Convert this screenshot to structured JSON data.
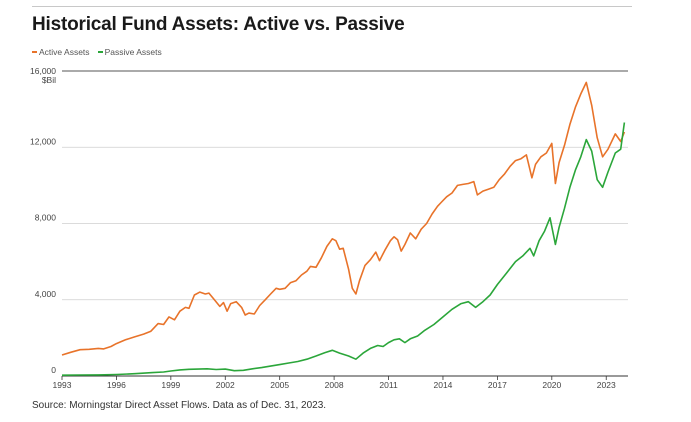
{
  "title": "Historical Fund Assets: Active vs. Passive",
  "source": "Morningstar Direct Asset Flows. Data as of Dec. 31, 2023.",
  "source_label": "Source:",
  "colors": {
    "active": "#e8732a",
    "passive": "#2ba63a",
    "grid": "#cfcfcf",
    "axis": "#333333"
  },
  "chart_data": {
    "type": "line",
    "y_unit": "$Bil",
    "ylim": [
      0,
      16000
    ],
    "y_ticks": [
      0,
      4000,
      8000,
      12000,
      16000
    ],
    "y_tick_labels": [
      "0",
      "4,000",
      "8,000",
      "12,000",
      "16,000"
    ],
    "xlim": [
      1993,
      2024.2
    ],
    "x_ticks": [
      1993,
      1996,
      1999,
      2002,
      2005,
      2008,
      2011,
      2014,
      2017,
      2020,
      2023
    ],
    "x_tick_labels": [
      "1993",
      "1996",
      "1999",
      "2002",
      "2005",
      "2008",
      "2011",
      "2014",
      "2017",
      "2020",
      "2023"
    ],
    "legend_position": "top-left",
    "grid": "horizontal",
    "series": [
      {
        "name": "Active Assets",
        "color": "#e8732a",
        "points": [
          [
            1993.0,
            1100
          ],
          [
            1993.5,
            1250
          ],
          [
            1994.0,
            1380
          ],
          [
            1994.5,
            1400
          ],
          [
            1995.0,
            1450
          ],
          [
            1995.3,
            1420
          ],
          [
            1995.7,
            1550
          ],
          [
            1996.0,
            1700
          ],
          [
            1996.5,
            1900
          ],
          [
            1997.0,
            2050
          ],
          [
            1997.5,
            2200
          ],
          [
            1997.9,
            2350
          ],
          [
            1998.3,
            2750
          ],
          [
            1998.6,
            2700
          ],
          [
            1998.9,
            3100
          ],
          [
            1999.2,
            2950
          ],
          [
            1999.5,
            3400
          ],
          [
            1999.8,
            3600
          ],
          [
            2000.0,
            3550
          ],
          [
            2000.3,
            4250
          ],
          [
            2000.6,
            4400
          ],
          [
            2000.9,
            4300
          ],
          [
            2001.1,
            4350
          ],
          [
            2001.4,
            4000
          ],
          [
            2001.7,
            3650
          ],
          [
            2001.9,
            3850
          ],
          [
            2002.1,
            3400
          ],
          [
            2002.3,
            3800
          ],
          [
            2002.6,
            3900
          ],
          [
            2002.9,
            3600
          ],
          [
            2003.1,
            3200
          ],
          [
            2003.3,
            3300
          ],
          [
            2003.6,
            3250
          ],
          [
            2003.9,
            3700
          ],
          [
            2004.2,
            4000
          ],
          [
            2004.5,
            4300
          ],
          [
            2004.8,
            4600
          ],
          [
            2005.0,
            4550
          ],
          [
            2005.3,
            4600
          ],
          [
            2005.6,
            4900
          ],
          [
            2005.9,
            5000
          ],
          [
            2006.2,
            5300
          ],
          [
            2006.5,
            5500
          ],
          [
            2006.7,
            5750
          ],
          [
            2007.0,
            5700
          ],
          [
            2007.3,
            6200
          ],
          [
            2007.6,
            6800
          ],
          [
            2007.9,
            7200
          ],
          [
            2008.1,
            7100
          ],
          [
            2008.3,
            6650
          ],
          [
            2008.5,
            6700
          ],
          [
            2008.8,
            5600
          ],
          [
            2009.0,
            4600
          ],
          [
            2009.2,
            4300
          ],
          [
            2009.4,
            5000
          ],
          [
            2009.7,
            5800
          ],
          [
            2010.0,
            6100
          ],
          [
            2010.3,
            6500
          ],
          [
            2010.5,
            6050
          ],
          [
            2010.8,
            6600
          ],
          [
            2011.1,
            7100
          ],
          [
            2011.3,
            7300
          ],
          [
            2011.5,
            7150
          ],
          [
            2011.7,
            6550
          ],
          [
            2011.9,
            6900
          ],
          [
            2012.2,
            7500
          ],
          [
            2012.5,
            7200
          ],
          [
            2012.8,
            7700
          ],
          [
            2013.1,
            8000
          ],
          [
            2013.4,
            8500
          ],
          [
            2013.7,
            8900
          ],
          [
            2013.9,
            9100
          ],
          [
            2014.2,
            9400
          ],
          [
            2014.5,
            9600
          ],
          [
            2014.8,
            10000
          ],
          [
            2015.1,
            10050
          ],
          [
            2015.4,
            10100
          ],
          [
            2015.7,
            10200
          ],
          [
            2015.9,
            9500
          ],
          [
            2016.2,
            9700
          ],
          [
            2016.5,
            9800
          ],
          [
            2016.8,
            9900
          ],
          [
            2017.1,
            10300
          ],
          [
            2017.4,
            10600
          ],
          [
            2017.7,
            11000
          ],
          [
            2018.0,
            11300
          ],
          [
            2018.3,
            11400
          ],
          [
            2018.6,
            11600
          ],
          [
            2018.9,
            10400
          ],
          [
            2019.1,
            11100
          ],
          [
            2019.4,
            11500
          ],
          [
            2019.7,
            11700
          ],
          [
            2020.0,
            12200
          ],
          [
            2020.2,
            10100
          ],
          [
            2020.4,
            11200
          ],
          [
            2020.7,
            12100
          ],
          [
            2021.0,
            13200
          ],
          [
            2021.3,
            14100
          ],
          [
            2021.6,
            14800
          ],
          [
            2021.9,
            15400
          ],
          [
            2022.2,
            14200
          ],
          [
            2022.5,
            12500
          ],
          [
            2022.8,
            11500
          ],
          [
            2023.1,
            11900
          ],
          [
            2023.5,
            12700
          ],
          [
            2023.8,
            12300
          ],
          [
            2024.0,
            12800
          ]
        ]
      },
      {
        "name": "Passive Assets",
        "color": "#2ba63a",
        "points": [
          [
            1993.0,
            40
          ],
          [
            1994.0,
            50
          ],
          [
            1995.0,
            60
          ],
          [
            1996.0,
            80
          ],
          [
            1997.0,
            120
          ],
          [
            1998.0,
            180
          ],
          [
            1998.6,
            210
          ],
          [
            1999.0,
            260
          ],
          [
            1999.5,
            320
          ],
          [
            2000.0,
            350
          ],
          [
            2000.5,
            360
          ],
          [
            2001.0,
            380
          ],
          [
            2001.5,
            340
          ],
          [
            2002.0,
            360
          ],
          [
            2002.5,
            280
          ],
          [
            2003.0,
            300
          ],
          [
            2003.5,
            380
          ],
          [
            2004.0,
            440
          ],
          [
            2004.5,
            520
          ],
          [
            2005.0,
            600
          ],
          [
            2005.5,
            680
          ],
          [
            2006.0,
            760
          ],
          [
            2006.5,
            880
          ],
          [
            2007.0,
            1050
          ],
          [
            2007.5,
            1230
          ],
          [
            2007.9,
            1350
          ],
          [
            2008.3,
            1200
          ],
          [
            2008.8,
            1050
          ],
          [
            2009.2,
            880
          ],
          [
            2009.6,
            1200
          ],
          [
            2010.0,
            1450
          ],
          [
            2010.4,
            1600
          ],
          [
            2010.7,
            1550
          ],
          [
            2011.0,
            1750
          ],
          [
            2011.3,
            1900
          ],
          [
            2011.6,
            1950
          ],
          [
            2011.9,
            1750
          ],
          [
            2012.2,
            1950
          ],
          [
            2012.6,
            2100
          ],
          [
            2013.0,
            2400
          ],
          [
            2013.5,
            2700
          ],
          [
            2014.0,
            3100
          ],
          [
            2014.5,
            3500
          ],
          [
            2015.0,
            3800
          ],
          [
            2015.4,
            3900
          ],
          [
            2015.8,
            3600
          ],
          [
            2016.2,
            3900
          ],
          [
            2016.6,
            4250
          ],
          [
            2017.0,
            4800
          ],
          [
            2017.5,
            5400
          ],
          [
            2018.0,
            6000
          ],
          [
            2018.4,
            6300
          ],
          [
            2018.8,
            6700
          ],
          [
            2019.0,
            6300
          ],
          [
            2019.3,
            7100
          ],
          [
            2019.6,
            7600
          ],
          [
            2019.9,
            8300
          ],
          [
            2020.2,
            6900
          ],
          [
            2020.4,
            7800
          ],
          [
            2020.7,
            8800
          ],
          [
            2021.0,
            9900
          ],
          [
            2021.3,
            10800
          ],
          [
            2021.6,
            11500
          ],
          [
            2021.9,
            12400
          ],
          [
            2022.2,
            11800
          ],
          [
            2022.5,
            10300
          ],
          [
            2022.8,
            9900
          ],
          [
            2023.1,
            10700
          ],
          [
            2023.5,
            11700
          ],
          [
            2023.8,
            11900
          ],
          [
            2024.0,
            13300
          ]
        ]
      }
    ]
  }
}
